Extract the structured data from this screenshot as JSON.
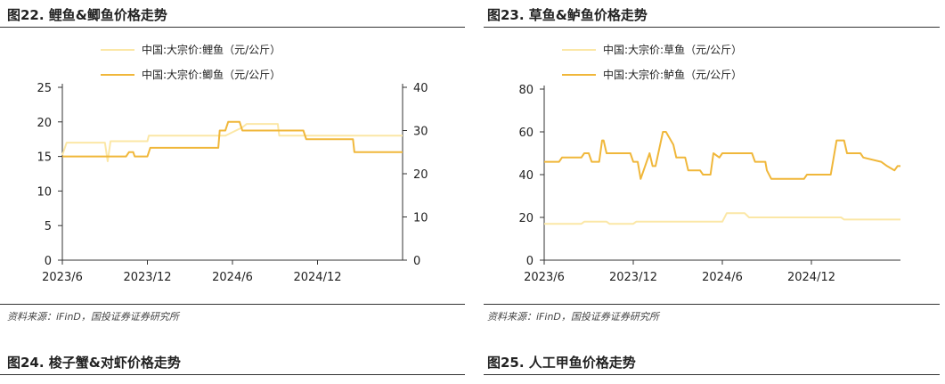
{
  "colors": {
    "light": "#fbe7a6",
    "dark": "#f0b73a",
    "axis": "#333333"
  },
  "panels": [
    {
      "title": "图22. 鲤鱼&鲫鱼价格走势",
      "source": "资料来源：iFinD，国投证券证券研究所",
      "legend": [
        "中国:大宗价:鲤鱼（元/公斤）",
        "中国:大宗价:鲫鱼（元/公斤）"
      ]
    },
    {
      "title": "图23. 草鱼&鲈鱼价格走势",
      "source": "资料来源：iFinD，国投证券证券研究所",
      "legend": [
        "中国:大宗价:草鱼（元/公斤）",
        "中国:大宗价:鲈鱼（元/公斤）"
      ]
    },
    {
      "title": "图24. 梭子蟹&对虾价格走势"
    },
    {
      "title": "图25. 人工甲鱼价格走势"
    }
  ],
  "chart_data": [
    {
      "type": "line",
      "xlim": [
        0,
        24
      ],
      "x_ticks": [
        {
          "x": 0,
          "label": "2023/6"
        },
        {
          "x": 6,
          "label": "2023/12"
        },
        {
          "x": 12,
          "label": "2024/6"
        },
        {
          "x": 18,
          "label": "2024/12"
        }
      ],
      "y_left": {
        "lim": [
          0,
          25
        ],
        "ticks": [
          0,
          5,
          10,
          15,
          20,
          25
        ]
      },
      "y_right": {
        "lim": [
          0,
          40
        ],
        "ticks": [
          0,
          10,
          20,
          30,
          40
        ]
      },
      "series": [
        {
          "name": "中国:大宗价:鲤鱼（元/公斤）",
          "axis": "left",
          "color": "light",
          "x": [
            0,
            0.3,
            3.0,
            3.2,
            3.4,
            6.0,
            6.1,
            11.5,
            12.7,
            13.0,
            15.2,
            15.3,
            20.3,
            20.5,
            24.0
          ],
          "y": [
            15.2,
            17.0,
            17.0,
            14.3,
            17.2,
            17.2,
            18.0,
            18.0,
            19.2,
            19.7,
            19.7,
            18.0,
            18.0,
            18.0,
            18.0
          ]
        },
        {
          "name": "中国:大宗价:鲫鱼（元/公斤）",
          "axis": "right",
          "color": "dark",
          "x": [
            0,
            4.5,
            4.7,
            5.0,
            5.1,
            6.0,
            6.2,
            11.0,
            11.1,
            11.5,
            11.7,
            12.5,
            12.7,
            17.0,
            17.2,
            20.5,
            20.6,
            24.0
          ],
          "y": [
            24.0,
            24.0,
            25.0,
            25.0,
            24.0,
            24.0,
            26.0,
            26.0,
            30.0,
            30.0,
            32.0,
            32.0,
            30.0,
            30.0,
            28.0,
            28.0,
            25.0,
            25.0
          ]
        }
      ]
    },
    {
      "type": "line",
      "xlim": [
        0,
        24
      ],
      "x_ticks": [
        {
          "x": 0,
          "label": "2023/6"
        },
        {
          "x": 6,
          "label": "2023/12"
        },
        {
          "x": 12,
          "label": "2024/6"
        },
        {
          "x": 18,
          "label": "2024/12"
        }
      ],
      "y_left": {
        "lim": [
          0,
          80
        ],
        "ticks": [
          0,
          20,
          40,
          60,
          80
        ]
      },
      "series": [
        {
          "name": "中国:大宗价:草鱼（元/公斤）",
          "axis": "left",
          "color": "light",
          "x": [
            0,
            2.5,
            2.7,
            4.2,
            4.4,
            6.0,
            6.2,
            12.0,
            12.3,
            13.5,
            13.8,
            20.0,
            20.2,
            24.0
          ],
          "y": [
            17,
            17,
            18,
            18,
            17,
            17,
            18,
            18,
            22,
            22,
            20,
            20,
            19,
            19
          ],
          "smooth": false
        },
        {
          "name": "中国:大宗价:鲈鱼（元/公斤）",
          "axis": "left",
          "color": "dark",
          "x": [
            0,
            1.0,
            1.2,
            2.5,
            2.7,
            3.0,
            3.2,
            3.7,
            3.9,
            4.0,
            4.2,
            5.8,
            6.0,
            6.3,
            6.5,
            6.8,
            7.1,
            7.3,
            7.5,
            8.0,
            8.2,
            8.7,
            8.9,
            9.5,
            9.7,
            10.5,
            10.7,
            11.2,
            11.4,
            11.8,
            12.0,
            12.5,
            14.0,
            14.2,
            14.9,
            15.0,
            15.3,
            17.5,
            17.7,
            19.3,
            19.5,
            19.7,
            20.2,
            20.4,
            20.7,
            21.3,
            21.5,
            22.7,
            23.1,
            23.6,
            23.8,
            24.0
          ],
          "y": [
            46,
            46,
            48,
            48,
            50,
            50,
            46,
            46,
            56,
            56,
            50,
            50,
            46,
            46,
            38,
            44,
            50,
            44,
            44,
            60,
            60,
            54,
            48,
            48,
            42,
            42,
            40,
            40,
            50,
            48,
            50,
            50,
            50,
            46,
            46,
            42,
            38,
            38,
            40,
            40,
            48,
            56,
            56,
            50,
            50,
            50,
            48,
            46,
            44,
            42,
            44,
            44
          ]
        }
      ]
    }
  ]
}
